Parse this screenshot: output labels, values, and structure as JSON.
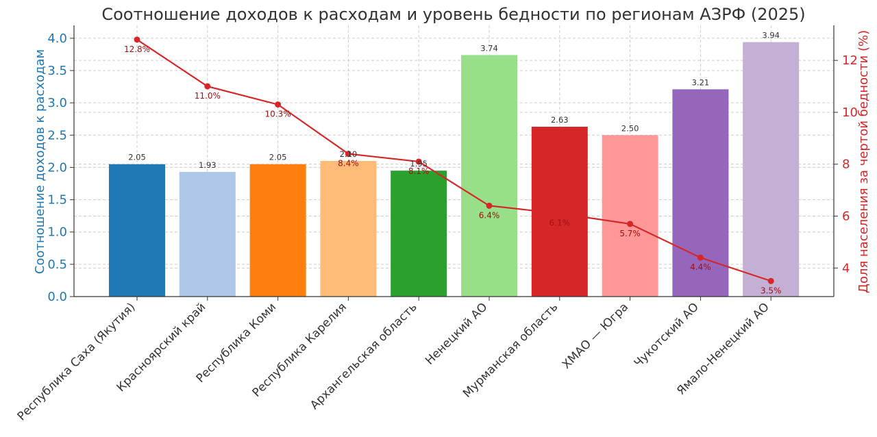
{
  "chart_data": {
    "type": "bar",
    "title": "Соотношение доходов к расходам и уровень бедности по регионам АЗРФ (2025)",
    "ylabel": "Соотношение доходов к расходам",
    "y2label": "Доля населения за чертой бедности (%)",
    "ylim": [
      0,
      4.2
    ],
    "y2lim": [
      2.9,
      13.35
    ],
    "yticks": [
      "0.0",
      "0.5",
      "1.0",
      "1.5",
      "2.0",
      "2.5",
      "3.0",
      "3.5",
      "4.0"
    ],
    "y2ticks": [
      "4",
      "6",
      "8",
      "10",
      "12"
    ],
    "grid": true,
    "categories": [
      "Республика Саха (Якутия)",
      "Красноярский край",
      "Республика Коми",
      "Республика Карелия",
      "Архангельская область",
      "Ненецкий АО",
      "Мурманская область",
      "ХМАО — Югра",
      "Чукотский АО",
      "Ямало-Ненецкий АО"
    ],
    "series": [
      {
        "type": "bar",
        "axis": "left",
        "values": [
          2.05,
          1.93,
          2.05,
          2.1,
          1.95,
          3.74,
          2.63,
          2.5,
          3.21,
          3.94
        ],
        "labels": [
          "2.05",
          "1.93",
          "2.05",
          "2.10",
          "1.95",
          "3.74",
          "2.63",
          "2.50",
          "3.21",
          "3.94"
        ],
        "colors": [
          "#1f77b4",
          "#aec7e8",
          "#ff7f0e",
          "#ffbb78",
          "#2ca02c",
          "#98df8a",
          "#d62728",
          "#ff9896",
          "#9467bd",
          "#c5b0d5"
        ]
      },
      {
        "type": "line",
        "axis": "right",
        "values": [
          12.8,
          11.0,
          10.3,
          8.4,
          8.1,
          6.4,
          6.1,
          5.7,
          4.4,
          3.5
        ],
        "labels": [
          "12.8%",
          "11.0%",
          "10.3%",
          "8.4%",
          "8.1%",
          "6.4%",
          "6.1%",
          "5.7%",
          "4.4%",
          "3.5%"
        ],
        "color": "#d62728"
      }
    ]
  }
}
